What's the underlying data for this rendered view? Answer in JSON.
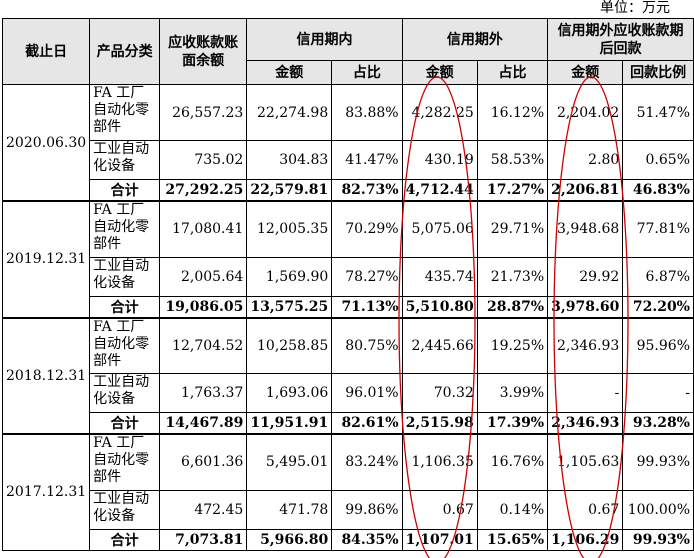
{
  "unit_label": "单位：万元",
  "headers": {
    "date": "截止日",
    "category": "产品分类",
    "balance": "应收账款账面余额",
    "within_credit": "信用期内",
    "beyond_credit": "信用期外",
    "recovered": "信用期外应收账款期后回款",
    "amount": "金额",
    "ratio": "占比",
    "return_ratio": "回款比例"
  },
  "groups": [
    {
      "date": "2020.06.30",
      "rows": [
        {
          "category": "FA 工厂自动化零部件",
          "balance": "26,557.23",
          "within_amt": "22,274.98",
          "within_pct": "83.88%",
          "beyond_amt": "4,282.25",
          "beyond_pct": "16.12%",
          "rec_amt": "2,204.02",
          "rec_pct": "51.47%"
        },
        {
          "category": "工业自动化设备",
          "balance": "735.02",
          "within_amt": "304.83",
          "within_pct": "41.47%",
          "beyond_amt": "430.19",
          "beyond_pct": "58.53%",
          "rec_amt": "2.80",
          "rec_pct": "0.65%"
        }
      ],
      "total": {
        "label": "合计",
        "balance": "27,292.25",
        "within_amt": "22,579.81",
        "within_pct": "82.73%",
        "beyond_amt": "4,712.44",
        "beyond_pct": "17.27%",
        "rec_amt": "2,206.81",
        "rec_pct": "46.83%"
      }
    },
    {
      "date": "2019.12.31",
      "rows": [
        {
          "category": "FA 工厂自动化零部件",
          "balance": "17,080.41",
          "within_amt": "12,005.35",
          "within_pct": "70.29%",
          "beyond_amt": "5,075.06",
          "beyond_pct": "29.71%",
          "rec_amt": "3,948.68",
          "rec_pct": "77.81%"
        },
        {
          "category": "工业自动化设备",
          "balance": "2,005.64",
          "within_amt": "1,569.90",
          "within_pct": "78.27%",
          "beyond_amt": "435.74",
          "beyond_pct": "21.73%",
          "rec_amt": "29.92",
          "rec_pct": "6.87%"
        }
      ],
      "total": {
        "label": "合计",
        "balance": "19,086.05",
        "within_amt": "13,575.25",
        "within_pct": "71.13%",
        "beyond_amt": "5,510.80",
        "beyond_pct": "28.87%",
        "rec_amt": "3,978.60",
        "rec_pct": "72.20%"
      }
    },
    {
      "date": "2018.12.31",
      "rows": [
        {
          "category": "FA 工厂自动化零部件",
          "balance": "12,704.52",
          "within_amt": "10,258.85",
          "within_pct": "80.75%",
          "beyond_amt": "2,445.66",
          "beyond_pct": "19.25%",
          "rec_amt": "2,346.93",
          "rec_pct": "95.96%"
        },
        {
          "category": "工业自动化设备",
          "balance": "1,763.37",
          "within_amt": "1,693.06",
          "within_pct": "96.01%",
          "beyond_amt": "70.32",
          "beyond_pct": "3.99%",
          "rec_amt": "-",
          "rec_pct": "-"
        }
      ],
      "total": {
        "label": "合计",
        "balance": "14,467.89",
        "within_amt": "11,951.91",
        "within_pct": "82.61%",
        "beyond_amt": "2,515.98",
        "beyond_pct": "17.39%",
        "rec_amt": "2,346.93",
        "rec_pct": "93.28%"
      }
    },
    {
      "date": "2017.12.31",
      "rows": [
        {
          "category": "FA 工厂自动化零部件",
          "balance": "6,601.36",
          "within_amt": "5,495.01",
          "within_pct": "83.24%",
          "beyond_amt": "1,106.35",
          "beyond_pct": "16.76%",
          "rec_amt": "1,105.63",
          "rec_pct": "99.93%"
        },
        {
          "category": "工业自动化设备",
          "balance": "472.45",
          "within_amt": "471.78",
          "within_pct": "99.86%",
          "beyond_amt": "0.67",
          "beyond_pct": "0.14%",
          "rec_amt": "0.67",
          "rec_pct": "100.00%"
        }
      ],
      "total": {
        "label": "合计",
        "balance": "7,073.81",
        "within_amt": "5,966.80",
        "within_pct": "84.35%",
        "beyond_amt": "1,107.01",
        "beyond_pct": "15.65%",
        "rec_amt": "1,106.29",
        "rec_pct": "99.93%"
      }
    }
  ],
  "annotation_color": "#cc0000"
}
